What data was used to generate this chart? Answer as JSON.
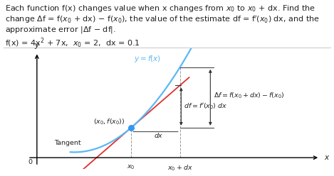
{
  "text_color": "#222222",
  "curve_color": "#5bb8f5",
  "tangent_color": "#e03030",
  "dot_color": "#3399ee",
  "divider_color": "#cccccc",
  "background_color": "#ffffff",
  "annotation_color": "#333333",
  "p0x": 1.55,
  "p1x": 2.35,
  "curve_a": 1.5,
  "curve_b": 0.25,
  "curve_c": 0.3,
  "curve_x0": 0.7,
  "xlim": [
    -0.25,
    4.8
  ],
  "ylim": [
    -0.6,
    5.8
  ],
  "fontsize_text": 8.0,
  "fontsize_small": 6.8,
  "fontsize_label": 7.5
}
